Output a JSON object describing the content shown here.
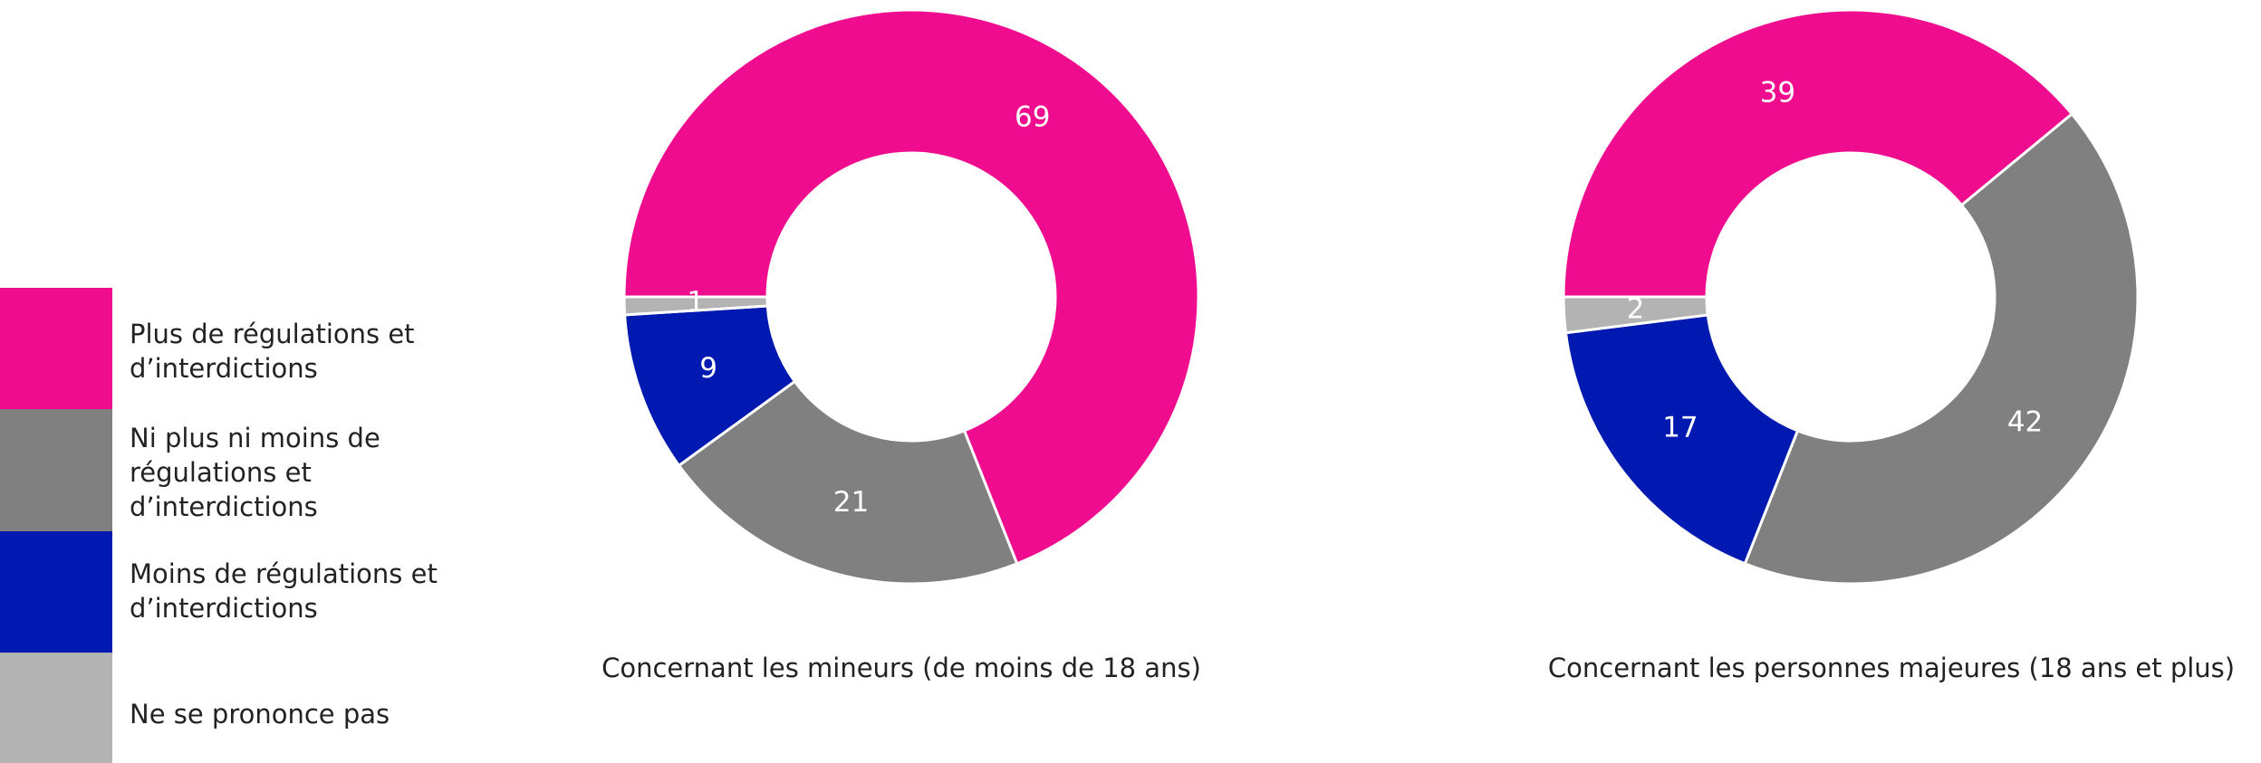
{
  "legend": {
    "labels": [
      "Plus de régulations et d’interdictions",
      "Ni plus ni moins de régulations et d’interdictions",
      "Moins de régulations et d’interdictions",
      "Ne se prononce pas"
    ],
    "colors": [
      "#f00c8e",
      "#808080",
      "#0019b0",
      "#b3b3b3"
    ]
  },
  "chart_data": [
    {
      "type": "donut",
      "title": "Concernant les mineurs (de moins de 18 ans)",
      "values": [
        69,
        21,
        9,
        1
      ]
    },
    {
      "type": "donut",
      "title": "Concernant les personnes majeures (18 ans et plus)",
      "values": [
        39,
        42,
        17,
        2
      ]
    }
  ]
}
